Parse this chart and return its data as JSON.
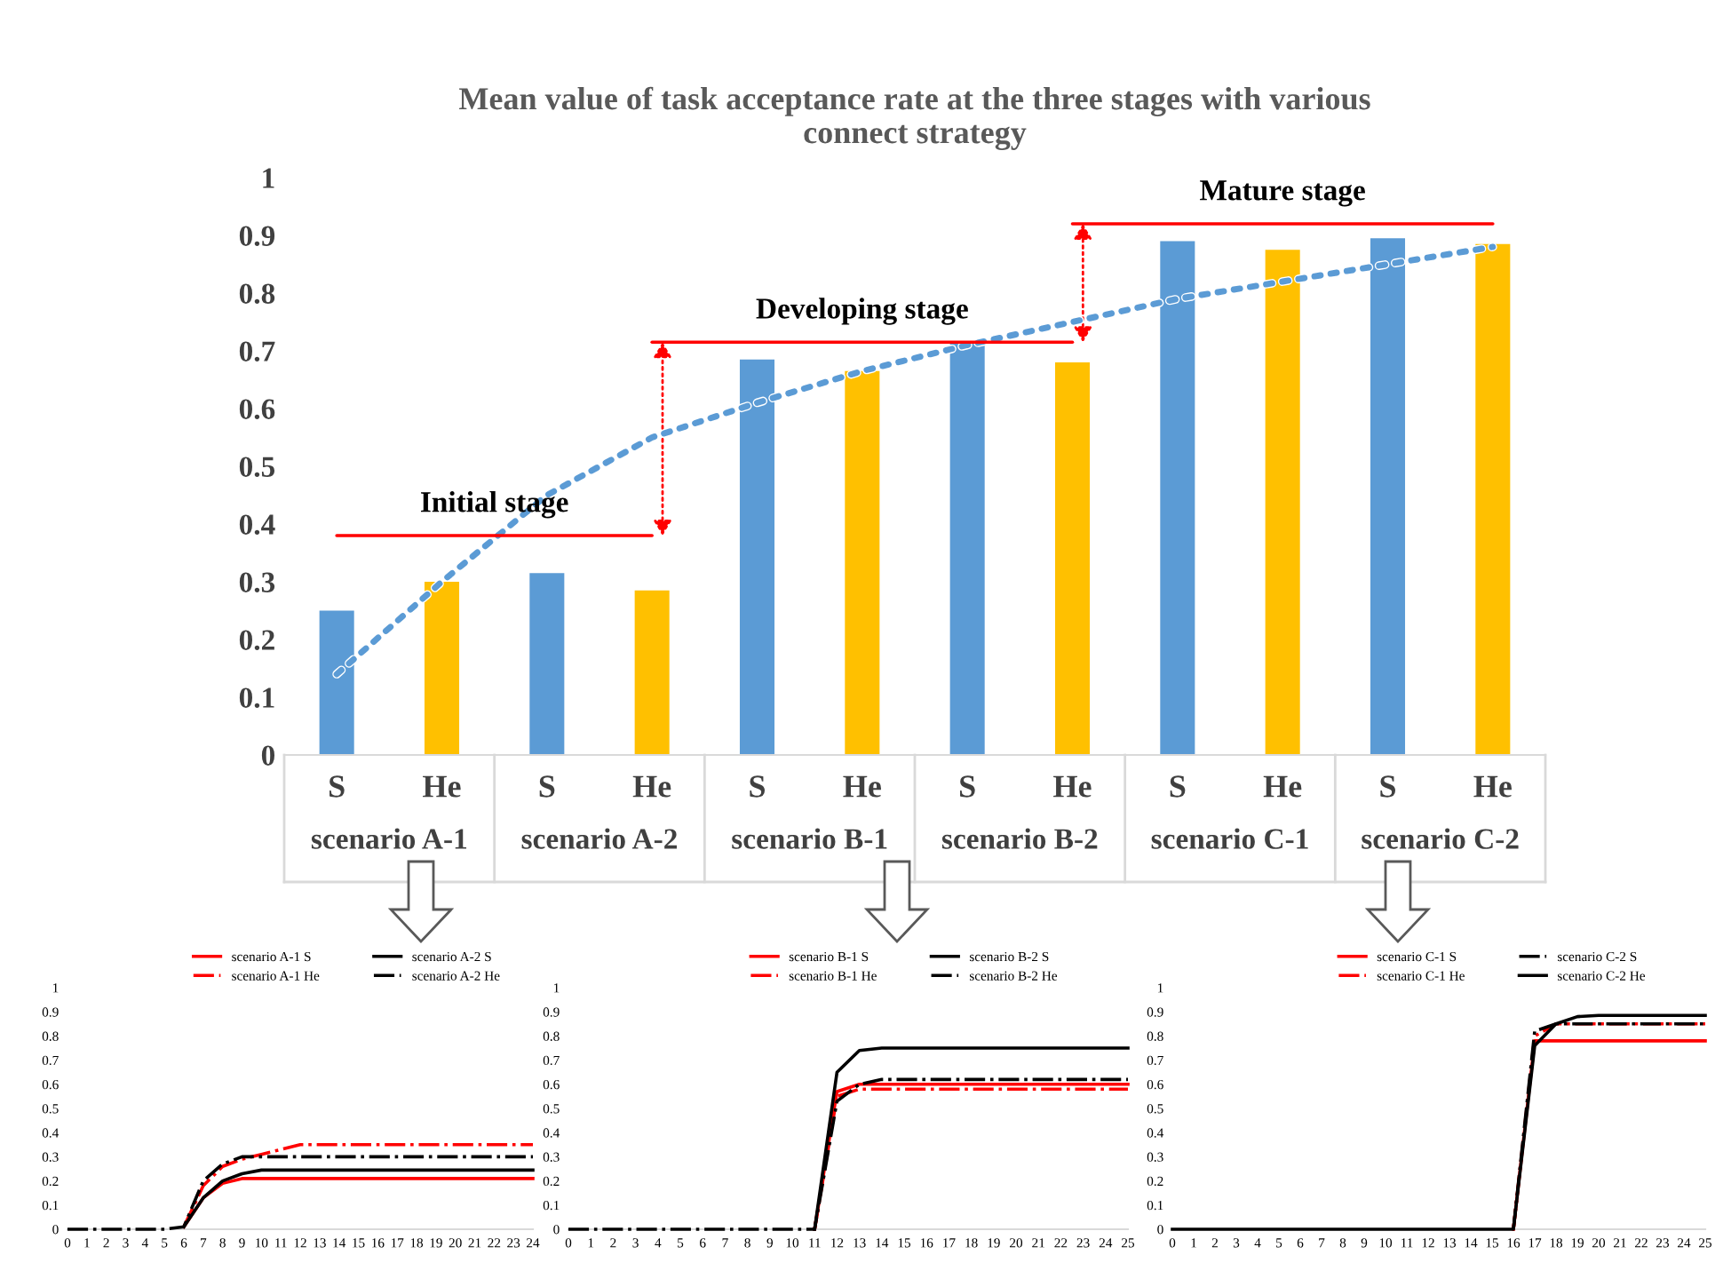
{
  "chart_data": [
    {
      "type": "bar",
      "title": "Mean value of task acceptance rate at the three stages with various\nconnect strategy",
      "categories": [
        "S",
        "He",
        "S",
        "He",
        "S",
        "He",
        "S",
        "He",
        "S",
        "He",
        "S",
        "He"
      ],
      "series": [
        {
          "type": "bar",
          "values": [
            0.25,
            0.3,
            0.315,
            0.285,
            0.685,
            0.665,
            0.715,
            0.68,
            0.89,
            0.875,
            0.895,
            0.885
          ],
          "colors": [
            "#5b9bd5",
            "#ffc000",
            "#5b9bd5",
            "#ffc000",
            "#5b9bd5",
            "#ffc000",
            "#5b9bd5",
            "#ffc000",
            "#5b9bd5",
            "#ffc000",
            "#5b9bd5",
            "#ffc000"
          ]
        },
        {
          "type": "line",
          "values": [
            0.14,
            0.3,
            0.45,
            0.55,
            0.61,
            0.665,
            0.71,
            0.75,
            0.79,
            0.82,
            0.85,
            0.88
          ],
          "color": "#5b9bd5",
          "line_style": "dotted"
        },
        {
          "type": "line",
          "values": [
            0.38,
            0.38,
            0.38,
            0.38,
            null,
            null,
            null,
            null,
            null,
            null,
            null,
            null
          ],
          "color": "#ff0000",
          "line_style": "solid"
        },
        {
          "type": "line",
          "values": [
            null,
            null,
            null,
            0.715,
            0.715,
            0.715,
            0.715,
            0.715,
            null,
            null,
            null,
            null
          ],
          "color": "#ff0000",
          "line_style": "solid"
        },
        {
          "type": "line",
          "values": [
            null,
            null,
            null,
            null,
            null,
            null,
            null,
            0.92,
            0.92,
            0.92,
            0.92,
            0.92
          ],
          "color": "#ff0000",
          "line_style": "solid"
        }
      ],
      "annotations": [
        "Initial stage",
        "Developing stage",
        "Mature stage",
        "scenario A-1",
        "scenario A-2",
        "scenario B-1",
        "scenario B-2",
        "scenario C-1",
        "scenario C-2"
      ],
      "ylim": [
        0,
        1
      ],
      "yticks": [
        0,
        0.1,
        0.2,
        0.3,
        0.4,
        0.5,
        0.6,
        0.7,
        0.8,
        0.9,
        1
      ],
      "grid": false,
      "legend": false
    },
    {
      "type": "line",
      "x": [
        0,
        1,
        2,
        3,
        4,
        5,
        6,
        7,
        8,
        9,
        10,
        11,
        12,
        13,
        14,
        15,
        16,
        17,
        18,
        19,
        20,
        21,
        22,
        23,
        24
      ],
      "series": [
        {
          "name": "scenario A-1 S",
          "color": "#ff0000",
          "line_style": "solid",
          "values": [
            null,
            null,
            null,
            null,
            null,
            null,
            0.01,
            0.13,
            0.19,
            0.21,
            0.21,
            0.21,
            0.21,
            0.21,
            0.21,
            0.21,
            0.21,
            0.21,
            0.21,
            0.21,
            0.21,
            0.21,
            0.21,
            0.21,
            0.21
          ]
        },
        {
          "name": "scenario A-1 He",
          "color": "#ff0000",
          "line_style": "dashdot",
          "values": [
            null,
            null,
            null,
            null,
            null,
            null,
            0.01,
            0.18,
            0.26,
            0.29,
            0.31,
            0.33,
            0.35,
            0.35,
            0.35,
            0.35,
            0.35,
            0.35,
            0.35,
            0.35,
            0.35,
            0.35,
            0.35,
            0.35,
            0.35
          ]
        },
        {
          "name": "scenario A-2 S",
          "color": "#000000",
          "line_style": "solid",
          "values": [
            null,
            null,
            null,
            null,
            null,
            null,
            0.01,
            0.13,
            0.2,
            0.23,
            0.245,
            0.245,
            0.245,
            0.245,
            0.245,
            0.245,
            0.245,
            0.245,
            0.245,
            0.245,
            0.245,
            0.245,
            0.245,
            0.245,
            0.245
          ]
        },
        {
          "name": "scenario A-2 He",
          "color": "#000000",
          "line_style": "dashdot",
          "values": [
            0,
            0,
            0,
            0,
            0,
            0,
            0.01,
            0.2,
            0.27,
            0.3,
            0.3,
            0.3,
            0.3,
            0.3,
            0.3,
            0.3,
            0.3,
            0.3,
            0.3,
            0.3,
            0.3,
            0.3,
            0.3,
            0.3,
            0.3
          ]
        }
      ],
      "xlim": [
        0,
        24
      ],
      "xticks": [
        0,
        1,
        2,
        3,
        4,
        5,
        6,
        7,
        8,
        9,
        10,
        11,
        12,
        13,
        14,
        15,
        16,
        17,
        18,
        19,
        20,
        21,
        22,
        23,
        24
      ],
      "ylim": [
        0,
        1
      ],
      "yticks": [
        0,
        0.1,
        0.2,
        0.3,
        0.4,
        0.5,
        0.6,
        0.7,
        0.8,
        0.9,
        1
      ],
      "grid": false,
      "legend": "top"
    },
    {
      "type": "line",
      "x": [
        0,
        1,
        2,
        3,
        4,
        5,
        6,
        7,
        8,
        9,
        10,
        11,
        12,
        13,
        14,
        15,
        16,
        17,
        18,
        19,
        20,
        21,
        22,
        23,
        24,
        25
      ],
      "series": [
        {
          "name": "scenario B-1 S",
          "color": "#ff0000",
          "line_style": "solid",
          "values": [
            null,
            null,
            null,
            null,
            null,
            null,
            null,
            null,
            null,
            null,
            null,
            0,
            0.57,
            0.6,
            0.6,
            0.6,
            0.6,
            0.6,
            0.6,
            0.6,
            0.6,
            0.6,
            0.6,
            0.6,
            0.6,
            0.6
          ]
        },
        {
          "name": "scenario B-1 He",
          "color": "#ff0000",
          "line_style": "dashdot",
          "values": [
            null,
            null,
            null,
            null,
            null,
            null,
            null,
            null,
            null,
            null,
            null,
            0,
            0.55,
            0.58,
            0.58,
            0.58,
            0.58,
            0.58,
            0.58,
            0.58,
            0.58,
            0.58,
            0.58,
            0.58,
            0.58,
            0.58
          ]
        },
        {
          "name": "scenario B-2 S",
          "color": "#000000",
          "line_style": "solid",
          "values": [
            null,
            null,
            null,
            null,
            null,
            null,
            null,
            null,
            null,
            null,
            null,
            0,
            0.65,
            0.74,
            0.75,
            0.75,
            0.75,
            0.75,
            0.75,
            0.75,
            0.75,
            0.75,
            0.75,
            0.75,
            0.75,
            0.75
          ]
        },
        {
          "name": "scenario B-2 He",
          "color": "#000000",
          "line_style": "dashdot",
          "values": [
            0,
            0,
            0,
            0,
            0,
            0,
            0,
            0,
            0,
            0,
            0,
            0,
            0.53,
            0.6,
            0.62,
            0.62,
            0.62,
            0.62,
            0.62,
            0.62,
            0.62,
            0.62,
            0.62,
            0.62,
            0.62,
            0.62
          ]
        }
      ],
      "xlim": [
        0,
        25
      ],
      "xticks": [
        0,
        1,
        2,
        3,
        4,
        5,
        6,
        7,
        8,
        9,
        10,
        11,
        12,
        13,
        14,
        15,
        16,
        17,
        18,
        19,
        20,
        21,
        22,
        23,
        24,
        25
      ],
      "ylim": [
        0,
        1
      ],
      "yticks": [
        0,
        0.1,
        0.2,
        0.3,
        0.4,
        0.5,
        0.6,
        0.7,
        0.8,
        0.9,
        1
      ],
      "grid": false,
      "legend": "top"
    },
    {
      "type": "line",
      "x": [
        0,
        1,
        2,
        3,
        4,
        5,
        6,
        7,
        8,
        9,
        10,
        11,
        12,
        13,
        14,
        15,
        16,
        17,
        18,
        19,
        20,
        21,
        22,
        23,
        24,
        25
      ],
      "series": [
        {
          "name": "scenario C-1 S",
          "color": "#ff0000",
          "line_style": "solid",
          "values": [
            null,
            null,
            null,
            null,
            null,
            null,
            null,
            null,
            null,
            null,
            null,
            null,
            null,
            null,
            null,
            null,
            0,
            0.78,
            0.78,
            0.78,
            0.78,
            0.78,
            0.78,
            0.78,
            0.78,
            0.78
          ]
        },
        {
          "name": "scenario C-1 He",
          "color": "#ff0000",
          "line_style": "dashdot",
          "values": [
            null,
            null,
            null,
            null,
            null,
            null,
            null,
            null,
            null,
            null,
            null,
            null,
            null,
            null,
            null,
            null,
            0,
            0.8,
            0.85,
            0.85,
            0.85,
            0.85,
            0.85,
            0.85,
            0.85,
            0.85
          ]
        },
        {
          "name": "scenario C-2 S",
          "color": "#000000",
          "line_style": "dashdot",
          "values": [
            null,
            null,
            null,
            null,
            null,
            null,
            null,
            null,
            null,
            null,
            null,
            null,
            null,
            null,
            null,
            null,
            0,
            0.82,
            0.85,
            0.85,
            0.85,
            0.85,
            0.85,
            0.85,
            0.85,
            0.85
          ]
        },
        {
          "name": "scenario C-2 He",
          "color": "#000000",
          "line_style": "solid",
          "values": [
            0,
            0,
            0,
            0,
            0,
            0,
            0,
            0,
            0,
            0,
            0,
            0,
            0,
            0,
            0,
            0,
            0,
            0.76,
            0.85,
            0.88,
            0.885,
            0.885,
            0.885,
            0.885,
            0.885,
            0.885
          ]
        }
      ],
      "xlim": [
        0,
        25
      ],
      "xticks": [
        0,
        1,
        2,
        3,
        4,
        5,
        6,
        7,
        8,
        9,
        10,
        11,
        12,
        13,
        14,
        15,
        16,
        17,
        18,
        19,
        20,
        21,
        22,
        23,
        24,
        25
      ],
      "ylim": [
        0,
        1
      ],
      "yticks": [
        0,
        0.1,
        0.2,
        0.3,
        0.4,
        0.5,
        0.6,
        0.7,
        0.8,
        0.9,
        1
      ],
      "grid": false,
      "legend": "top"
    }
  ]
}
